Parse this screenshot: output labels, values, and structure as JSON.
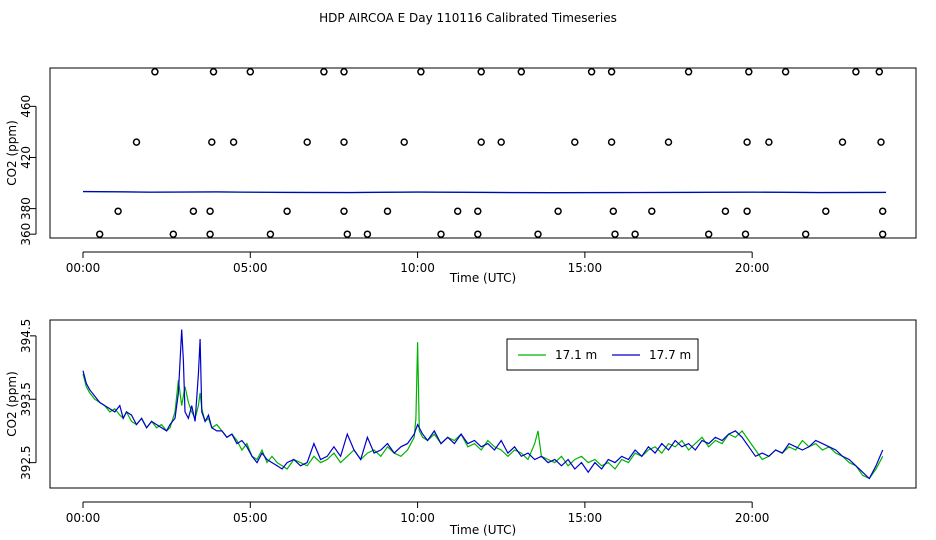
{
  "title": "HDP AIRCOA E  Day 110116  Calibrated Timeseries",
  "chart_data": [
    {
      "type": "scatter",
      "xlabel": "Time (UTC)",
      "ylabel": "CO2 (ppm)",
      "xlim": [
        0,
        24
      ],
      "ylim": [
        357,
        490
      ],
      "x_ticks": [
        0,
        5,
        10,
        15,
        20
      ],
      "x_tick_labels": [
        "00:00",
        "05:00",
        "10:00",
        "15:00",
        "20:00"
      ],
      "y_ticks": [
        380,
        420,
        460
      ],
      "y_tick_labels": [
        "380",
        "420",
        "460"
      ],
      "extra_y_tick": {
        "value": 360,
        "label": "360"
      },
      "point_series": {
        "levels": [
          {
            "y": 360,
            "x": [
              0.5,
              2.7,
              3.8,
              5.6,
              7.9,
              8.5,
              10.7,
              11.8,
              13.6,
              15.9,
              16.5,
              18.7,
              19.8,
              21.6,
              23.9
            ]
          },
          {
            "y": 378,
            "x": [
              1.05,
              3.3,
              3.8,
              6.1,
              7.8,
              9.1,
              11.2,
              11.8,
              14.2,
              15.85,
              17.0,
              19.2,
              19.85,
              22.2,
              23.9
            ]
          },
          {
            "y": 432,
            "x": [
              1.6,
              3.85,
              4.5,
              6.7,
              7.8,
              9.6,
              11.9,
              12.5,
              14.7,
              15.8,
              17.5,
              19.85,
              20.5,
              22.7,
              23.85
            ]
          },
          {
            "y": 487,
            "x": [
              2.15,
              3.9,
              5.0,
              7.2,
              7.8,
              10.1,
              11.9,
              13.1,
              15.2,
              15.8,
              18.1,
              19.9,
              21.0,
              23.1,
              23.8
            ]
          }
        ]
      },
      "line_series": [
        {
          "name": "17.1 m",
          "color": "#00b300",
          "x": [
            0,
            2,
            4,
            6,
            8,
            10,
            12,
            14,
            16,
            18,
            20,
            22,
            24
          ],
          "y": [
            393.2,
            392.8,
            393.0,
            392.6,
            392.5,
            392.9,
            392.6,
            392.4,
            392.5,
            392.6,
            392.8,
            392.5,
            392.6
          ]
        },
        {
          "name": "17.7 m",
          "color": "#0000cc",
          "x": [
            0,
            2,
            4,
            6,
            8,
            10,
            12,
            14,
            16,
            18,
            20,
            22,
            24
          ],
          "y": [
            393.4,
            392.9,
            393.1,
            392.7,
            392.6,
            393.0,
            392.7,
            392.5,
            392.6,
            392.7,
            392.9,
            392.6,
            392.7
          ]
        }
      ]
    },
    {
      "type": "line",
      "xlabel": "Time (UTC)",
      "ylabel": "CO2 (ppm)",
      "xlim": [
        0,
        24
      ],
      "ylim": [
        392.1,
        394.75
      ],
      "x_ticks": [
        0,
        5,
        10,
        15,
        20
      ],
      "x_tick_labels": [
        "00:00",
        "05:00",
        "10:00",
        "15:00",
        "20:00"
      ],
      "y_ticks": [
        392.5,
        393.5,
        394.5
      ],
      "y_tick_labels": [
        "392.5",
        "393.5",
        "394.5"
      ],
      "legend": {
        "position": "top-right"
      },
      "series": [
        {
          "name": "17.1 m",
          "color": "#00b300",
          "x": [
            0.0,
            0.1,
            0.2,
            0.35,
            0.5,
            0.65,
            0.8,
            0.95,
            1.1,
            1.2,
            1.3,
            1.45,
            1.6,
            1.75,
            1.9,
            2.05,
            2.2,
            2.35,
            2.5,
            2.6,
            2.75,
            2.85,
            2.95,
            3.05,
            3.15,
            3.25,
            3.35,
            3.45,
            3.5,
            3.55,
            3.65,
            3.75,
            3.85,
            4.0,
            4.15,
            4.3,
            4.45,
            4.6,
            4.75,
            4.9,
            5.05,
            5.2,
            5.35,
            5.5,
            5.65,
            5.8,
            5.95,
            6.1,
            6.3,
            6.5,
            6.7,
            6.9,
            7.1,
            7.3,
            7.5,
            7.7,
            7.9,
            8.1,
            8.3,
            8.5,
            8.7,
            8.9,
            9.1,
            9.3,
            9.5,
            9.7,
            9.9,
            9.95,
            10.0,
            10.05,
            10.15,
            10.3,
            10.5,
            10.7,
            10.9,
            11.1,
            11.3,
            11.5,
            11.7,
            11.9,
            12.1,
            12.3,
            12.5,
            12.7,
            12.9,
            13.1,
            13.3,
            13.5,
            13.6,
            13.7,
            13.9,
            14.1,
            14.3,
            14.5,
            14.7,
            14.9,
            15.1,
            15.3,
            15.5,
            15.7,
            15.9,
            16.1,
            16.3,
            16.5,
            16.7,
            16.9,
            17.1,
            17.3,
            17.5,
            17.7,
            17.9,
            18.1,
            18.3,
            18.5,
            18.7,
            18.9,
            19.1,
            19.3,
            19.5,
            19.7,
            19.9,
            20.1,
            20.3,
            20.5,
            20.7,
            20.9,
            21.1,
            21.3,
            21.5,
            21.7,
            21.9,
            22.1,
            22.3,
            22.5,
            22.7,
            22.9,
            23.1,
            23.3,
            23.5,
            23.7,
            23.9
          ],
          "y": [
            393.9,
            393.7,
            393.6,
            393.5,
            393.45,
            393.4,
            393.3,
            393.35,
            393.25,
            393.2,
            393.3,
            393.15,
            393.1,
            393.2,
            393.05,
            393.15,
            393.05,
            393.1,
            393.0,
            393.05,
            393.3,
            393.8,
            393.4,
            393.7,
            393.45,
            393.3,
            393.2,
            393.4,
            393.6,
            393.35,
            393.15,
            393.2,
            393.05,
            393.1,
            393.0,
            392.9,
            392.95,
            392.85,
            392.7,
            392.8,
            392.6,
            392.55,
            392.7,
            392.5,
            392.6,
            392.5,
            392.45,
            392.4,
            392.55,
            392.5,
            392.45,
            392.6,
            392.5,
            392.55,
            392.65,
            392.5,
            392.6,
            392.7,
            392.55,
            392.65,
            392.7,
            392.6,
            392.75,
            392.65,
            392.6,
            392.7,
            392.9,
            393.2,
            394.4,
            393.0,
            392.9,
            392.85,
            392.95,
            392.8,
            392.9,
            392.85,
            392.95,
            392.75,
            392.8,
            392.7,
            392.85,
            392.75,
            392.7,
            392.6,
            392.7,
            392.65,
            392.55,
            392.8,
            393.0,
            392.6,
            392.55,
            392.5,
            392.6,
            392.45,
            392.55,
            392.6,
            392.5,
            392.55,
            392.45,
            392.5,
            392.4,
            392.55,
            392.5,
            392.65,
            392.6,
            392.7,
            392.75,
            392.65,
            392.8,
            392.75,
            392.85,
            392.7,
            392.8,
            392.9,
            392.75,
            392.85,
            392.8,
            392.95,
            392.9,
            393.0,
            392.85,
            392.7,
            392.55,
            392.6,
            392.7,
            392.65,
            392.75,
            392.7,
            392.85,
            392.75,
            392.8,
            392.7,
            392.75,
            392.65,
            392.6,
            392.5,
            392.45,
            392.3,
            392.25,
            392.4,
            392.6
          ]
        },
        {
          "name": "17.7 m",
          "color": "#0000cc",
          "x": [
            0.0,
            0.1,
            0.2,
            0.35,
            0.5,
            0.65,
            0.8,
            0.95,
            1.1,
            1.2,
            1.3,
            1.45,
            1.6,
            1.75,
            1.9,
            2.05,
            2.2,
            2.35,
            2.5,
            2.6,
            2.75,
            2.85,
            2.95,
            3.0,
            3.05,
            3.15,
            3.25,
            3.35,
            3.45,
            3.5,
            3.55,
            3.65,
            3.75,
            3.85,
            4.0,
            4.15,
            4.3,
            4.45,
            4.6,
            4.75,
            4.9,
            5.05,
            5.2,
            5.35,
            5.5,
            5.65,
            5.8,
            5.95,
            6.1,
            6.3,
            6.5,
            6.7,
            6.9,
            7.1,
            7.3,
            7.5,
            7.7,
            7.9,
            8.1,
            8.3,
            8.5,
            8.7,
            8.9,
            9.1,
            9.3,
            9.5,
            9.7,
            9.9,
            10.0,
            10.15,
            10.3,
            10.5,
            10.7,
            10.9,
            11.1,
            11.3,
            11.5,
            11.7,
            11.9,
            12.1,
            12.3,
            12.5,
            12.7,
            12.9,
            13.1,
            13.3,
            13.5,
            13.7,
            13.9,
            14.1,
            14.3,
            14.5,
            14.7,
            14.9,
            15.1,
            15.3,
            15.5,
            15.7,
            15.9,
            16.1,
            16.3,
            16.5,
            16.7,
            16.9,
            17.1,
            17.3,
            17.5,
            17.7,
            17.9,
            18.1,
            18.3,
            18.5,
            18.7,
            18.9,
            19.1,
            19.3,
            19.5,
            19.7,
            19.9,
            20.1,
            20.3,
            20.5,
            20.7,
            20.9,
            21.1,
            21.3,
            21.5,
            21.7,
            21.9,
            22.1,
            22.3,
            22.5,
            22.7,
            22.9,
            23.1,
            23.3,
            23.5,
            23.7,
            23.9
          ],
          "y": [
            393.95,
            393.75,
            393.65,
            393.55,
            393.45,
            393.4,
            393.35,
            393.3,
            393.4,
            393.2,
            393.3,
            393.25,
            393.1,
            393.2,
            393.05,
            393.15,
            393.1,
            393.05,
            393.0,
            393.1,
            393.2,
            393.6,
            394.6,
            394.1,
            393.3,
            393.2,
            393.4,
            393.15,
            393.9,
            394.45,
            393.3,
            393.15,
            393.25,
            393.05,
            393.0,
            393.0,
            392.9,
            392.95,
            392.8,
            392.85,
            392.75,
            392.6,
            392.5,
            392.65,
            392.55,
            392.5,
            392.45,
            392.4,
            392.5,
            392.55,
            392.45,
            392.5,
            392.8,
            392.55,
            392.6,
            392.75,
            392.6,
            392.95,
            392.7,
            392.55,
            392.9,
            392.65,
            392.7,
            392.8,
            392.65,
            392.75,
            392.8,
            392.95,
            393.1,
            392.95,
            392.85,
            393.0,
            392.8,
            392.9,
            392.8,
            392.95,
            392.8,
            392.85,
            392.75,
            392.8,
            392.7,
            392.85,
            392.65,
            392.75,
            392.6,
            392.65,
            392.55,
            392.6,
            392.5,
            392.55,
            392.45,
            392.55,
            392.4,
            392.5,
            392.35,
            392.5,
            392.4,
            392.55,
            392.5,
            392.6,
            392.55,
            392.7,
            392.6,
            392.75,
            392.65,
            392.8,
            392.7,
            392.85,
            392.75,
            392.8,
            392.7,
            392.85,
            392.8,
            392.9,
            392.85,
            392.95,
            393.0,
            392.9,
            392.75,
            392.6,
            392.65,
            392.6,
            392.7,
            392.65,
            392.8,
            392.75,
            392.7,
            392.75,
            392.85,
            392.8,
            392.75,
            392.7,
            392.6,
            392.55,
            392.45,
            392.35,
            392.25,
            392.45,
            392.7
          ]
        }
      ]
    }
  ]
}
